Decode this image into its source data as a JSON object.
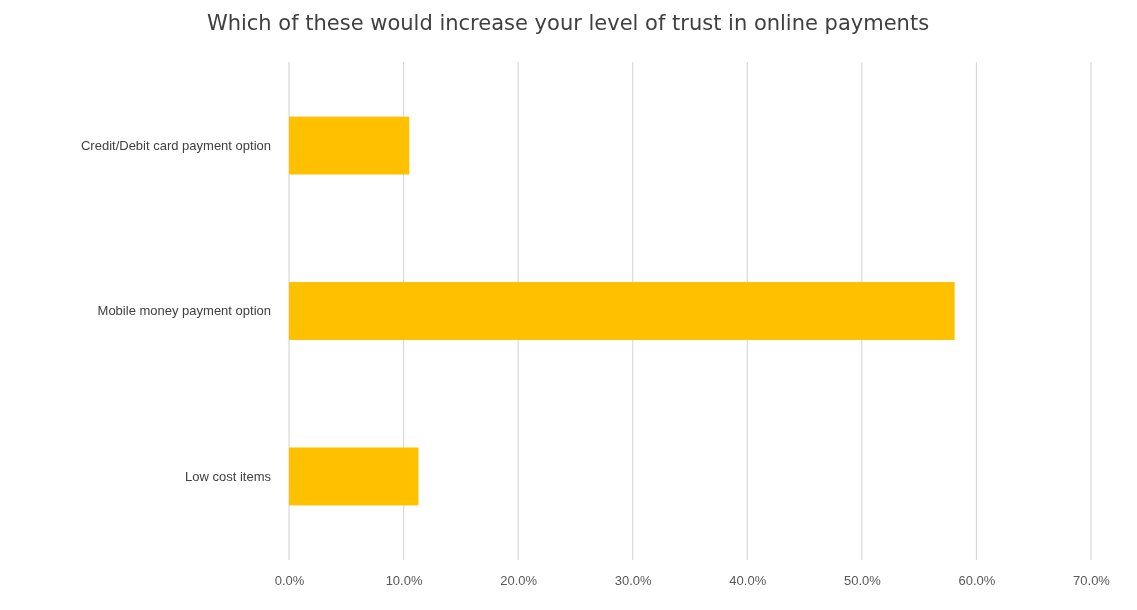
{
  "chart_data": {
    "type": "bar",
    "orientation": "horizontal",
    "title": "Which of these would increase your level of trust in online payments",
    "categories": [
      "Credit/Debit card payment option",
      "Mobile money payment option",
      "Low cost items"
    ],
    "values": [
      10.5,
      58.1,
      11.3
    ],
    "color": "#ffc000",
    "xlim": [
      0,
      70
    ],
    "xticks": [
      {
        "value": 0,
        "label": "0.0%"
      },
      {
        "value": 10,
        "label": "10.0%"
      },
      {
        "value": 20,
        "label": "20.0%"
      },
      {
        "value": 30,
        "label": "30.0%"
      },
      {
        "value": 40,
        "label": "40.0%"
      },
      {
        "value": 50,
        "label": "50.0%"
      },
      {
        "value": 60,
        "label": "60.0%"
      },
      {
        "value": 70,
        "label": "70.0%"
      }
    ],
    "grid": "x"
  }
}
